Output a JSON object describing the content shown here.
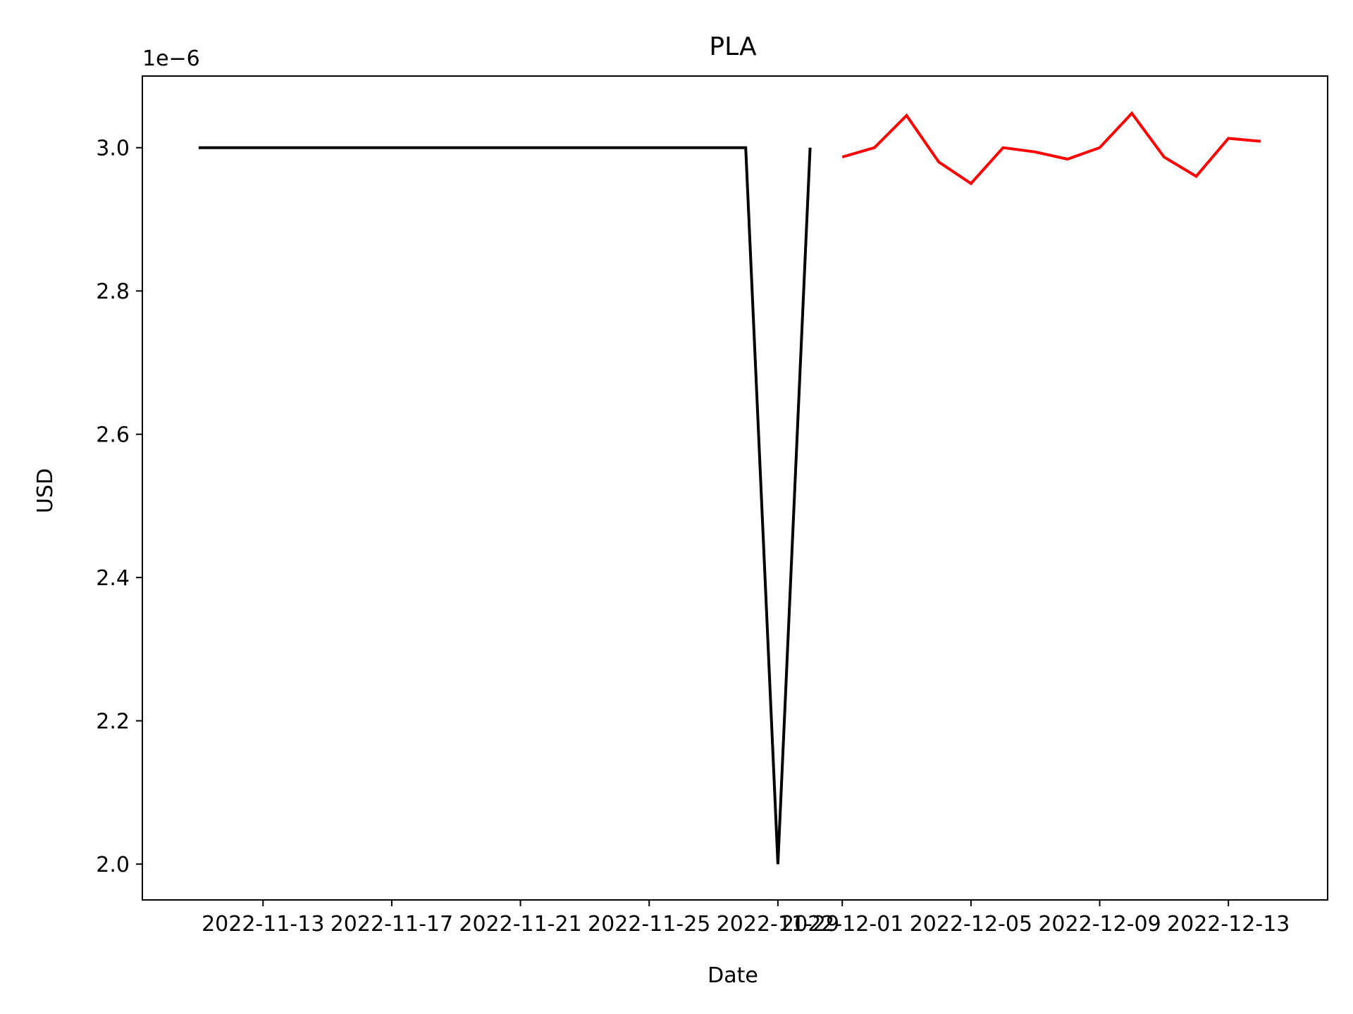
{
  "chart_data": {
    "type": "line",
    "title": "PLA",
    "xlabel": "Date",
    "ylabel": "USD",
    "y_offset_label": "1e−6",
    "y_scale_factor": 1e-06,
    "x_ticks": [
      "2022-11-13",
      "2022-11-17",
      "2022-11-21",
      "2022-11-25",
      "2022-11-29",
      "2022-12-01",
      "2022-12-05",
      "2022-12-09",
      "2022-12-13"
    ],
    "y_ticks": [
      2.0,
      2.2,
      2.4,
      2.6,
      2.8,
      3.0
    ],
    "ylim": [
      1.95,
      3.1
    ],
    "xlim": [
      "2022-11-09T06:00",
      "2022-12-16T02:00"
    ],
    "grid": false,
    "series": [
      {
        "color": "#000000",
        "x": [
          "2022-11-11",
          "2022-11-12",
          "2022-11-13",
          "2022-11-14",
          "2022-11-15",
          "2022-11-16",
          "2022-11-17",
          "2022-11-18",
          "2022-11-19",
          "2022-11-20",
          "2022-11-21",
          "2022-11-22",
          "2022-11-23",
          "2022-11-24",
          "2022-11-25",
          "2022-11-26",
          "2022-11-27",
          "2022-11-28",
          "2022-11-29",
          "2022-11-30"
        ],
        "values": [
          3.0,
          3.0,
          3.0,
          3.0,
          3.0,
          3.0,
          3.0,
          3.0,
          3.0,
          3.0,
          3.0,
          3.0,
          3.0,
          3.0,
          3.0,
          3.0,
          3.0,
          3.0,
          2.0,
          3.0
        ]
      },
      {
        "color": "#ff0000",
        "x": [
          "2022-12-01",
          "2022-12-02",
          "2022-12-03",
          "2022-12-04",
          "2022-12-05",
          "2022-12-06",
          "2022-12-07",
          "2022-12-08",
          "2022-12-09",
          "2022-12-10",
          "2022-12-11",
          "2022-12-12",
          "2022-12-13",
          "2022-12-14"
        ],
        "values": [
          2.987,
          3.0,
          3.045,
          2.98,
          2.95,
          3.0,
          2.994,
          2.984,
          3.0,
          3.048,
          2.987,
          2.96,
          3.013,
          3.009
        ]
      }
    ]
  }
}
